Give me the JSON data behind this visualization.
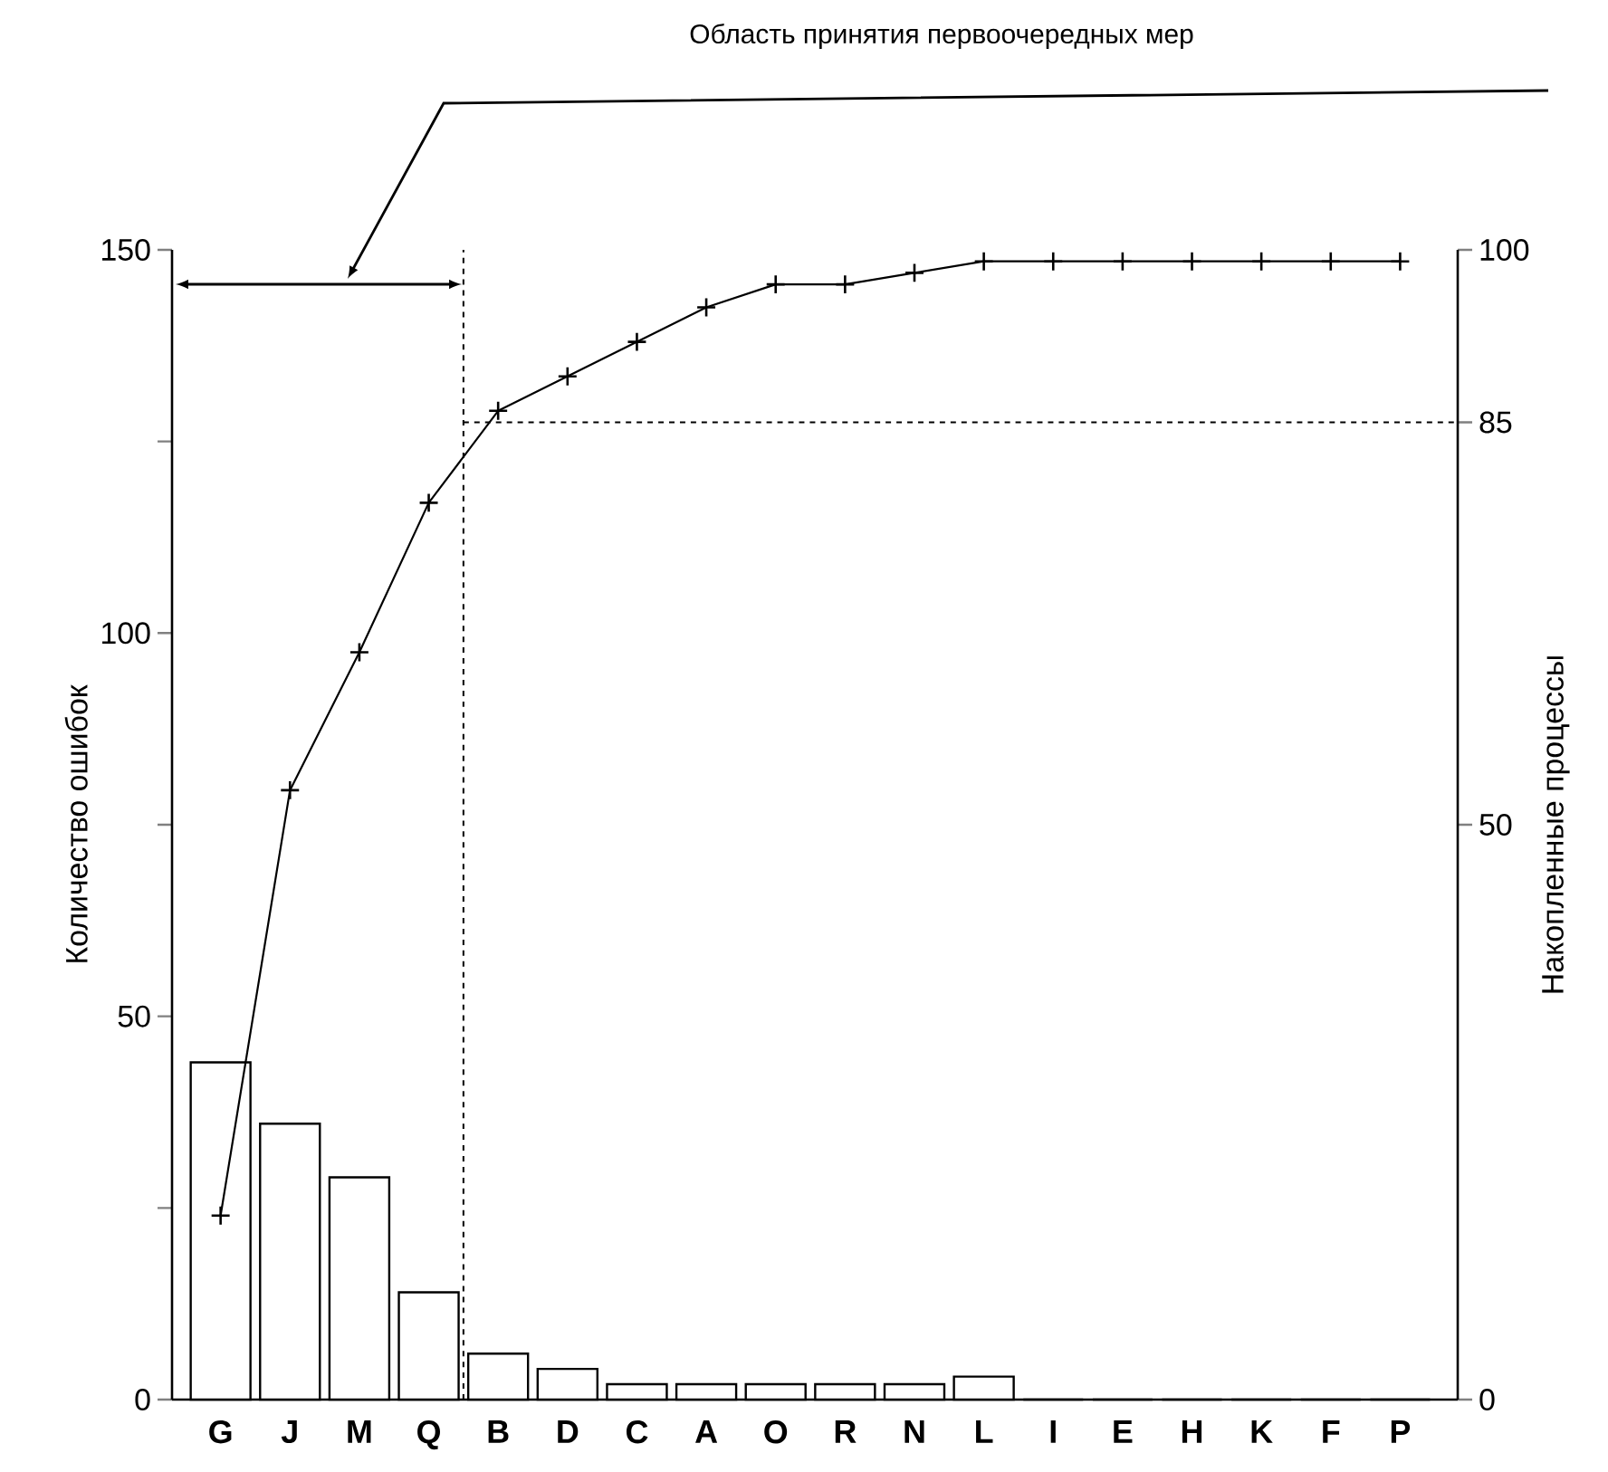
{
  "chart_data": {
    "type": "bar",
    "ylabel": "Количество ошибок",
    "y2label": "Накопленные процессы",
    "annotations": [
      "Область принятия первоочередных мер"
    ],
    "categories": [
      "G",
      "J",
      "M",
      "Q",
      "B",
      "D",
      "C",
      "A",
      "O",
      "R",
      "N",
      "L",
      "I",
      "E",
      "H",
      "K",
      "F",
      "P"
    ],
    "series": [
      {
        "color": "#ffffff",
        "values": [
          44,
          36,
          29,
          14,
          6,
          4,
          2,
          2,
          2,
          2,
          2,
          3,
          0,
          0,
          0,
          0,
          0,
          0
        ]
      },
      {
        "type": "line",
        "axis": "y2",
        "color": "#000000",
        "marker": "cross",
        "line_style": "solid",
        "values": [
          16,
          53,
          65,
          78,
          86,
          89,
          92,
          95,
          97,
          97,
          98,
          99,
          99,
          99,
          99,
          99,
          99,
          99
        ]
      }
    ],
    "ylim": [
      0,
      150
    ],
    "yticks": [
      0,
      {
        "value": 25,
        "label": null
      },
      50,
      {
        "value": 75,
        "label": null
      },
      100,
      {
        "value": 125,
        "label": null
      },
      150
    ],
    "y2lim": [
      0,
      100
    ],
    "y2ticks": [
      0,
      50,
      85,
      100
    ],
    "ref_lines": [
      {
        "axis": "y2",
        "value": 85,
        "line_style": "dashed"
      }
    ]
  }
}
